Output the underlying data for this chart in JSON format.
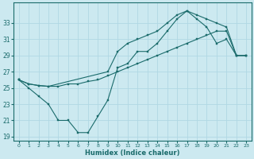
{
  "xlabel": "Humidex (Indice chaleur)",
  "ylabel": "",
  "bg_color": "#cce9f0",
  "grid_color": "#b0d8e4",
  "line_color": "#1a6b6b",
  "xlim": [
    -0.5,
    23.5
  ],
  "ylim": [
    18.5,
    35.5
  ],
  "xticks": [
    0,
    1,
    2,
    3,
    4,
    5,
    6,
    7,
    8,
    9,
    10,
    11,
    12,
    13,
    14,
    15,
    16,
    17,
    18,
    19,
    20,
    21,
    22,
    23
  ],
  "yticks": [
    19,
    21,
    23,
    25,
    27,
    29,
    31,
    33
  ],
  "line1_x": [
    0,
    1,
    2,
    3,
    4,
    5,
    6,
    7,
    8,
    9,
    10,
    11,
    12,
    13,
    14,
    15,
    16,
    17,
    18,
    19,
    20,
    21,
    22,
    23
  ],
  "line1_y": [
    26,
    25,
    24,
    23,
    21,
    21,
    19.5,
    19.5,
    21.5,
    23.5,
    27.5,
    28,
    29.5,
    29.5,
    30.5,
    32,
    33.5,
    34.5,
    33.5,
    32.5,
    30.5,
    31,
    29,
    29
  ],
  "line2_x": [
    0,
    1,
    2,
    3,
    4,
    5,
    6,
    7,
    8,
    9,
    10,
    11,
    12,
    13,
    14,
    15,
    16,
    17,
    18,
    19,
    20,
    21,
    22,
    23
  ],
  "line2_y": [
    26,
    25.5,
    25.3,
    25.2,
    25.2,
    25.5,
    25.5,
    25.8,
    26,
    26.5,
    27,
    27.5,
    28,
    28.5,
    29,
    29.5,
    30,
    30.5,
    31,
    31.5,
    32,
    32,
    29,
    29
  ],
  "line3_x": [
    0,
    1,
    2,
    3,
    9,
    10,
    11,
    12,
    13,
    14,
    15,
    16,
    17,
    18,
    19,
    20,
    21,
    22,
    23
  ],
  "line3_y": [
    26,
    25.5,
    25.3,
    25.2,
    27,
    29.5,
    30.5,
    31,
    31.5,
    32,
    33,
    34,
    34.5,
    34,
    33.5,
    33,
    32.5,
    29,
    29
  ]
}
